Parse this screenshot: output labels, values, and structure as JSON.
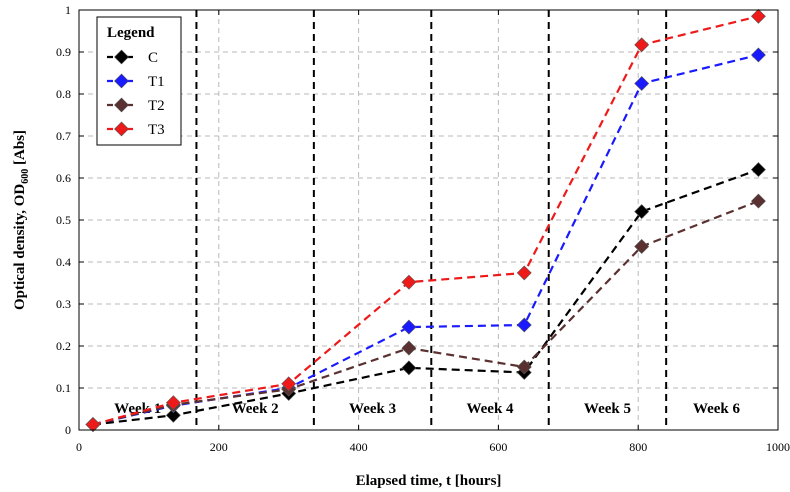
{
  "chart_data": {
    "type": "line",
    "xlabel": "Elapsed time, t [hours]",
    "ylabel_main": "Optical density, OD",
    "ylabel_sub": "600",
    "ylabel_unit": " [Abs]",
    "xlim": [
      0,
      1000
    ],
    "ylim": [
      0,
      1
    ],
    "xticks": [
      0,
      200,
      400,
      600,
      800,
      1000
    ],
    "yticks": [
      0,
      0.1,
      0.2,
      0.3,
      0.4,
      0.5,
      0.6,
      0.7,
      0.8,
      0.9,
      1
    ],
    "ytick_labels": [
      "0",
      "0.1",
      "0.2",
      "0.3",
      "0.4",
      "0.5",
      "0.6",
      "0.7",
      "0.8",
      "0.9",
      "1"
    ],
    "grid": true,
    "week_boundaries": [
      168,
      336,
      504,
      672,
      840
    ],
    "week_labels": [
      {
        "label": "Week 1",
        "x": 84
      },
      {
        "label": "Week 2",
        "x": 252
      },
      {
        "label": "Week 3",
        "x": 420
      },
      {
        "label": "Week 4",
        "x": 588
      },
      {
        "label": "Week 5",
        "x": 756
      },
      {
        "label": "Week 6",
        "x": 912
      }
    ],
    "week_label_y": 0.04,
    "legend": {
      "title": "Legend",
      "position": "top-left"
    },
    "series": [
      {
        "name": "C",
        "color": "#000000",
        "points": [
          [
            20,
            0.013
          ],
          [
            135,
            0.035
          ],
          [
            300,
            0.087
          ],
          [
            472,
            0.148
          ],
          [
            637,
            0.137
          ],
          [
            805,
            0.52
          ],
          [
            972,
            0.62
          ]
        ]
      },
      {
        "name": "T1",
        "color": "#1a1aff",
        "points": [
          [
            20,
            0.013
          ],
          [
            135,
            0.058
          ],
          [
            300,
            0.1
          ],
          [
            472,
            0.245
          ],
          [
            637,
            0.25
          ],
          [
            805,
            0.825
          ],
          [
            972,
            0.893
          ]
        ]
      },
      {
        "name": "T2",
        "color": "#5a3030",
        "points": [
          [
            20,
            0.013
          ],
          [
            135,
            0.06
          ],
          [
            300,
            0.097
          ],
          [
            472,
            0.195
          ],
          [
            637,
            0.15
          ],
          [
            805,
            0.437
          ],
          [
            972,
            0.545
          ]
        ]
      },
      {
        "name": "T3",
        "color": "#ee1a1a",
        "points": [
          [
            20,
            0.013
          ],
          [
            135,
            0.065
          ],
          [
            300,
            0.11
          ],
          [
            472,
            0.352
          ],
          [
            637,
            0.374
          ],
          [
            805,
            0.917
          ],
          [
            972,
            0.985
          ]
        ]
      }
    ]
  }
}
